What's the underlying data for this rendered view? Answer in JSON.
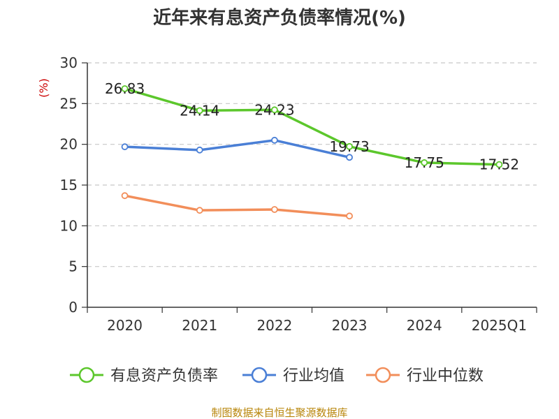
{
  "chart_data": {
    "type": "line",
    "title": "近年来有息资产负债率情况(%)",
    "ylabel": "(%)",
    "categories": [
      "2020",
      "2021",
      "2022",
      "2023",
      "2024",
      "2025Q1"
    ],
    "ylim": [
      0,
      30
    ],
    "yticks": [
      0,
      5,
      10,
      15,
      20,
      25,
      30
    ],
    "grid": true,
    "legend_position": "bottom",
    "series": [
      {
        "name": "有息资产负债率",
        "color": "#5cc72c",
        "values": [
          26.83,
          24.14,
          24.23,
          19.73,
          17.75,
          17.52
        ],
        "labels": [
          "26.83",
          "24.14",
          "24.23",
          "19.73",
          "17.75",
          "17.52"
        ]
      },
      {
        "name": "行业均值",
        "color": "#4a7fd6",
        "values": [
          19.7,
          19.3,
          20.5,
          18.4,
          null,
          null
        ]
      },
      {
        "name": "行业中位数",
        "color": "#f28e5a",
        "values": [
          13.7,
          11.9,
          12.0,
          11.2,
          null,
          null
        ]
      }
    ]
  },
  "source_text": "制图数据来自恒生聚源数据库"
}
